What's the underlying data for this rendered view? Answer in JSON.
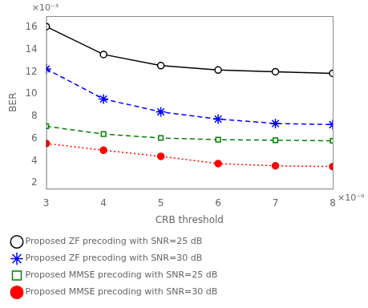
{
  "chart_data": {
    "type": "line",
    "x": [
      3e-09,
      4e-09,
      5e-09,
      6e-09,
      7e-09,
      8e-09
    ],
    "series": [
      {
        "name": "Proposed ZF precoding with SNR=25 dB",
        "color": "black",
        "marker": "open_circle",
        "line_style": "solid",
        "values": [
          0.01605,
          0.01355,
          0.01255,
          0.01215,
          0.012,
          0.01185
        ]
      },
      {
        "name": "Proposed ZF precoding with SNR=30 dB",
        "color": "blue",
        "marker": "star",
        "line_style": "dashed",
        "values": [
          0.01225,
          0.00955,
          0.0084,
          0.00775,
          0.00735,
          0.00725
        ]
      },
      {
        "name": "Proposed MMSE precoding with SNR=25 dB",
        "color": "green",
        "marker": "open_square",
        "line_style": "dashed",
        "values": [
          0.0071,
          0.0064,
          0.00605,
          0.0059,
          0.00585,
          0.0058
        ]
      },
      {
        "name": "Proposed MMSE precoding with SNR=30 dB",
        "color": "red",
        "marker": "circle",
        "line_style": "dotted",
        "values": [
          0.00555,
          0.00495,
          0.0044,
          0.00375,
          0.00355,
          0.00348
        ]
      }
    ],
    "x_label": "CRB threshold",
    "y_label": "BER",
    "xlim": [
      3e-09,
      8e-09
    ],
    "xticks": [
      {
        "value": 3e-09,
        "label": "3"
      },
      {
        "value": 4e-09,
        "label": "4"
      },
      {
        "value": 5e-09,
        "label": "5"
      },
      {
        "value": 6e-09,
        "label": "6"
      },
      {
        "value": 7e-09,
        "label": "7"
      },
      {
        "value": 8e-09,
        "label": "8"
      }
    ],
    "ylim": [
      0.0015,
      0.017
    ],
    "yticks": [
      {
        "value": 0.002,
        "label": "2"
      },
      {
        "value": 0.004,
        "label": "4"
      },
      {
        "value": 0.006,
        "label": "6"
      },
      {
        "value": 0.008,
        "label": "8"
      },
      {
        "value": 0.01,
        "label": "10"
      },
      {
        "value": 0.012,
        "label": "12"
      },
      {
        "value": 0.014,
        "label": "14"
      },
      {
        "value": 0.016,
        "label": "16"
      }
    ],
    "annotations": [
      "×10⁻³",
      "×10⁻⁹"
    ],
    "legend": "lower left",
    "grid": false
  }
}
